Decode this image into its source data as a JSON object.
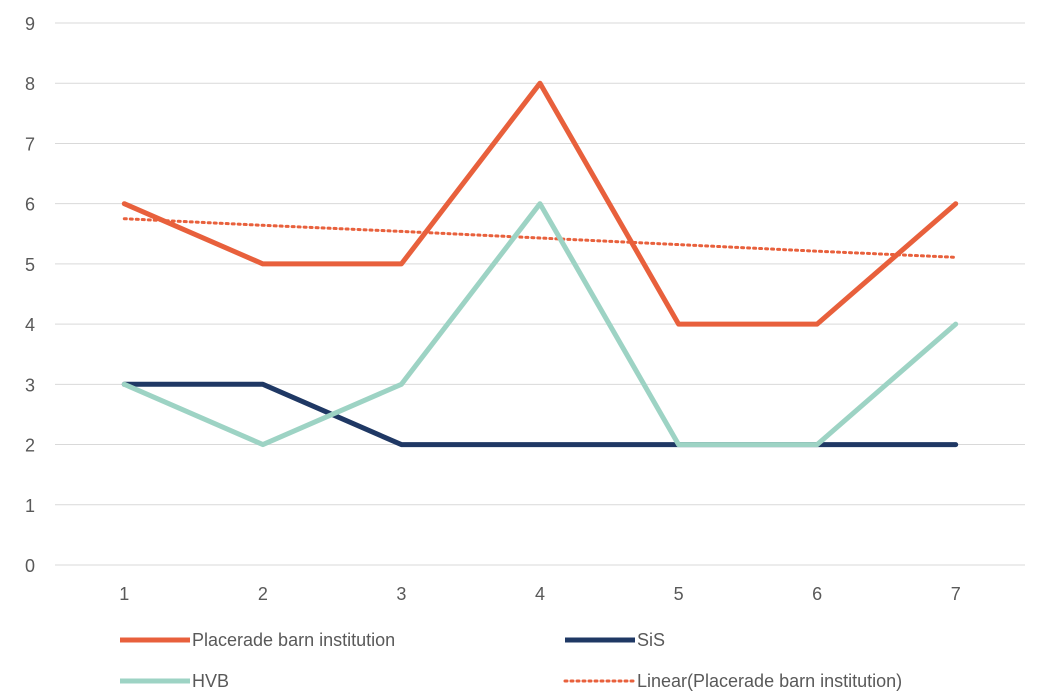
{
  "chart_data": {
    "type": "line",
    "categories": [
      "1",
      "2",
      "3",
      "4",
      "5",
      "6",
      "7"
    ],
    "ylim": [
      0,
      9
    ],
    "y_ticks": [
      0,
      1,
      2,
      3,
      4,
      5,
      6,
      7,
      8,
      9
    ],
    "grid": true,
    "legend_position": "bottom",
    "series": [
      {
        "name": "Placerade barn institution",
        "values": [
          6,
          5,
          5,
          8,
          4,
          4,
          6
        ],
        "color": "#e8603c",
        "style": "solid"
      },
      {
        "name": "SiS",
        "values": [
          3,
          3,
          2,
          2,
          2,
          2,
          2
        ],
        "color": "#1f3864",
        "style": "solid"
      },
      {
        "name": "HVB",
        "values": [
          3,
          2,
          3,
          6,
          2,
          2,
          4
        ],
        "color": "#9dd3c4",
        "style": "solid"
      }
    ],
    "trendline": {
      "name": "Linear(Placerade barn institution)",
      "of_series": "Placerade barn institution",
      "values": [
        5.75,
        5.64,
        5.54,
        5.43,
        5.32,
        5.21,
        5.11
      ],
      "color": "#e8603c",
      "style": "dotted"
    }
  }
}
